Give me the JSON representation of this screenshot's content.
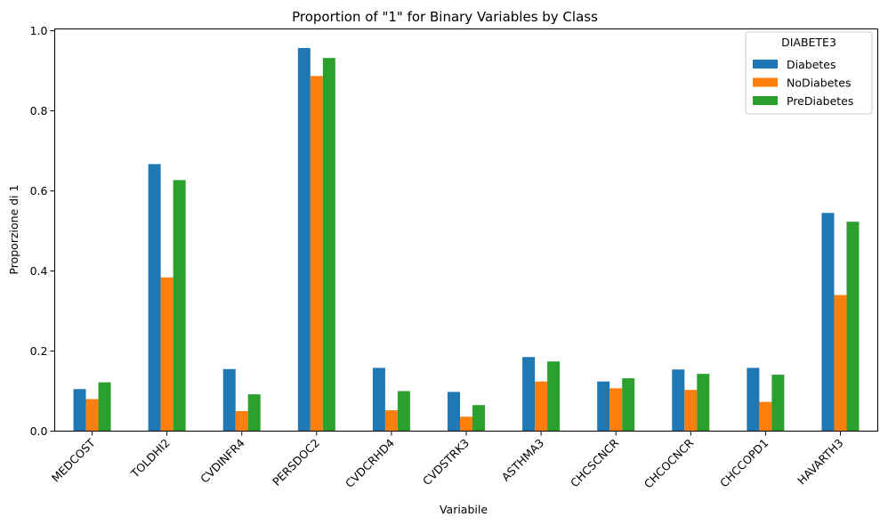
{
  "chart_data": {
    "type": "bar",
    "title": "Proportion of \"1\" for Binary Variables by Class",
    "xlabel": "Variabile",
    "ylabel": "Proporzione di 1",
    "ylim": [
      0,
      1.0
    ],
    "yticks": [
      0.0,
      0.2,
      0.4,
      0.6,
      0.8,
      1.0
    ],
    "ytick_labels": [
      "0.0",
      "0.2",
      "0.4",
      "0.6",
      "0.8",
      "1.0"
    ],
    "grid": false,
    "legend": {
      "title": "DIABETE3",
      "placement": "top-right"
    },
    "categories": [
      "MEDCOST",
      "TOLDHI2",
      "CVDINFR4",
      "PERSDOC2",
      "CVDCRHD4",
      "CVDSTRK3",
      "ASTHMA3",
      "CHCSCNCR",
      "CHCOCNCR",
      "CHCCOPD1",
      "HAVARTH3"
    ],
    "series": [
      {
        "name": "Diabetes",
        "color": "#1f77b4",
        "values": [
          0.105,
          0.667,
          0.155,
          0.957,
          0.158,
          0.098,
          0.185,
          0.124,
          0.154,
          0.158,
          0.545
        ]
      },
      {
        "name": "NoDiabetes",
        "color": "#ff7f0e",
        "values": [
          0.08,
          0.384,
          0.05,
          0.887,
          0.052,
          0.036,
          0.124,
          0.107,
          0.103,
          0.073,
          0.34
        ]
      },
      {
        "name": "PreDiabetes",
        "color": "#2ca02c",
        "values": [
          0.122,
          0.627,
          0.092,
          0.932,
          0.1,
          0.065,
          0.174,
          0.132,
          0.143,
          0.141,
          0.523
        ]
      }
    ]
  }
}
